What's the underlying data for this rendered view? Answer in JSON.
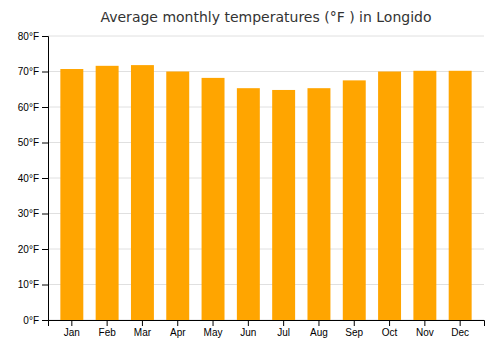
{
  "chart_data": {
    "type": "bar",
    "title": "Average monthly temperatures (°F ) in Longido",
    "categories": [
      "Jan",
      "Feb",
      "Mar",
      "Apr",
      "May",
      "Jun",
      "Jul",
      "Aug",
      "Sep",
      "Oct",
      "Nov",
      "Dec"
    ],
    "values": [
      70.7,
      71.6,
      71.8,
      70.0,
      68.2,
      65.3,
      64.8,
      65.3,
      67.5,
      70.0,
      70.2,
      70.2
    ],
    "color": "#FFA500",
    "ylim": [
      0,
      80
    ],
    "yticks": [
      {
        "value": 0,
        "label": "0°F"
      },
      {
        "value": 10,
        "label": "10°F"
      },
      {
        "value": 20,
        "label": "20°F"
      },
      {
        "value": 30,
        "label": "30°F"
      },
      {
        "value": 40,
        "label": "40°F"
      },
      {
        "value": 50,
        "label": "50°F"
      },
      {
        "value": 60,
        "label": "60°F"
      },
      {
        "value": 70,
        "label": "70°F"
      },
      {
        "value": 80,
        "label": "80°F"
      }
    ],
    "grid": true
  }
}
